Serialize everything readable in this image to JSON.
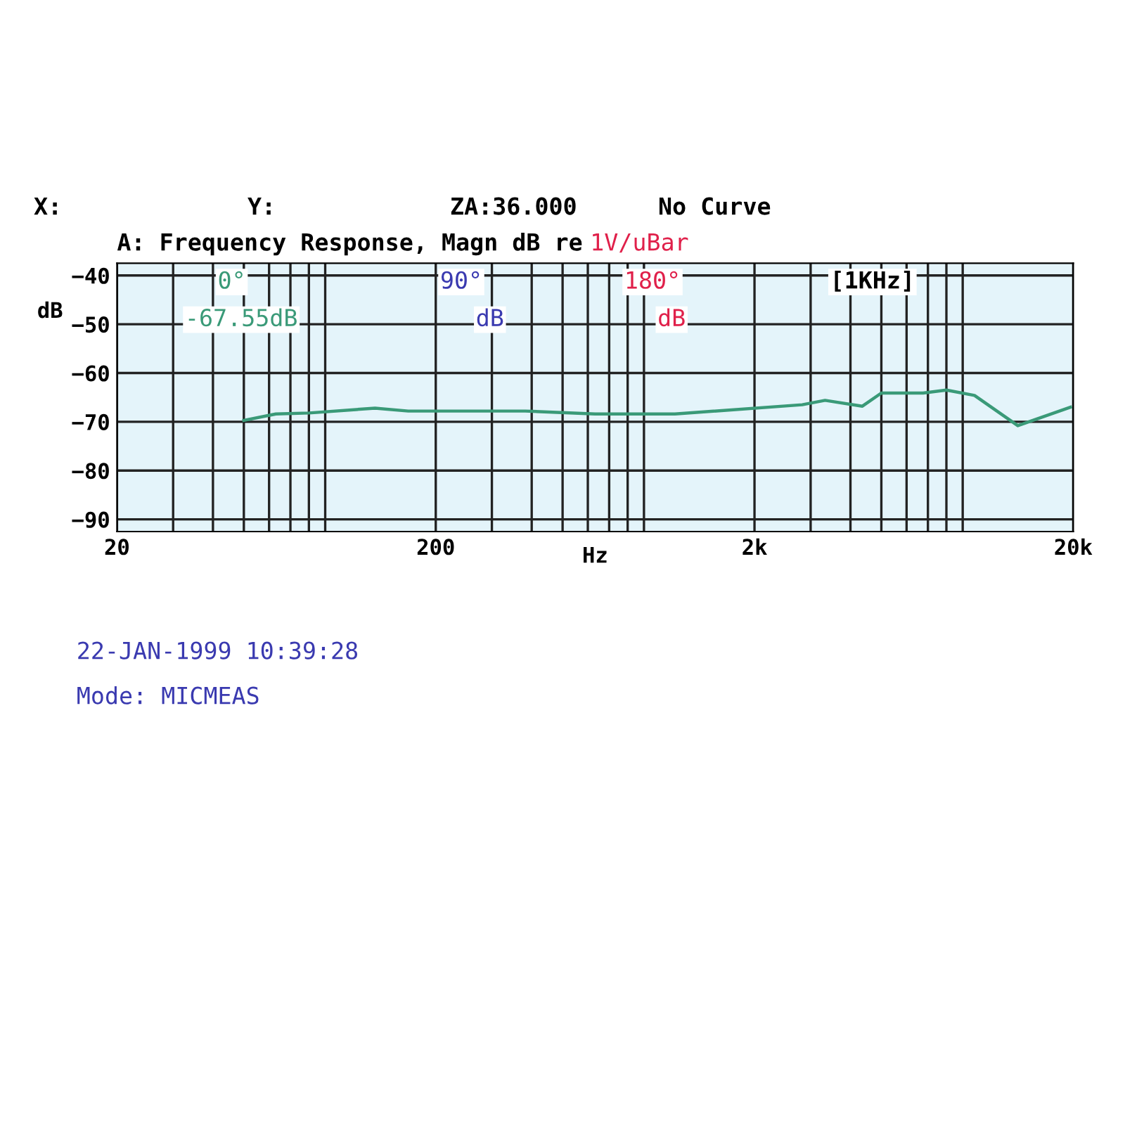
{
  "chart_data": {
    "type": "line",
    "title": "A: Frequency Response, Magn dB re",
    "subtitle": "1V/uBar",
    "xlabel": "Hz",
    "ylabel": "dB",
    "log": "x",
    "xlim": [
      20,
      20000
    ],
    "xticks": [
      {
        "value": 20,
        "label": "20"
      },
      {
        "value": 200,
        "label": "200"
      },
      {
        "value": 2000,
        "label": "2k"
      },
      {
        "value": 20000,
        "label": "20k"
      }
    ],
    "ylim": [
      -92.5,
      -37.5
    ],
    "yticks": [
      -40,
      -50,
      -60,
      -70,
      -80,
      -90
    ],
    "grid": true,
    "series": [
      {
        "name": "0°",
        "color": "#3a9a78",
        "x": [
          50,
          63,
          80,
          129,
          164,
          382,
          632,
          1126,
          2823,
          3330,
          4360,
          5000,
          6760,
          8000,
          9800,
          13400,
          19600
        ],
        "values": [
          -69.7,
          -68.4,
          -68.2,
          -67.2,
          -67.8,
          -67.8,
          -68.4,
          -68.4,
          -66.5,
          -65.6,
          -66.8,
          -64.1,
          -64.1,
          -63.5,
          -64.6,
          -70.8,
          -67.0
        ]
      }
    ],
    "annotations": [
      "X:",
      "Y:",
      "ZA:36.000",
      "No Curve",
      "90°",
      "180°",
      "[1KHz]",
      "-67.55dB",
      "dB",
      "dB",
      "22-JAN-1999 10:39:28",
      "Mode: MICMEAS"
    ]
  }
}
